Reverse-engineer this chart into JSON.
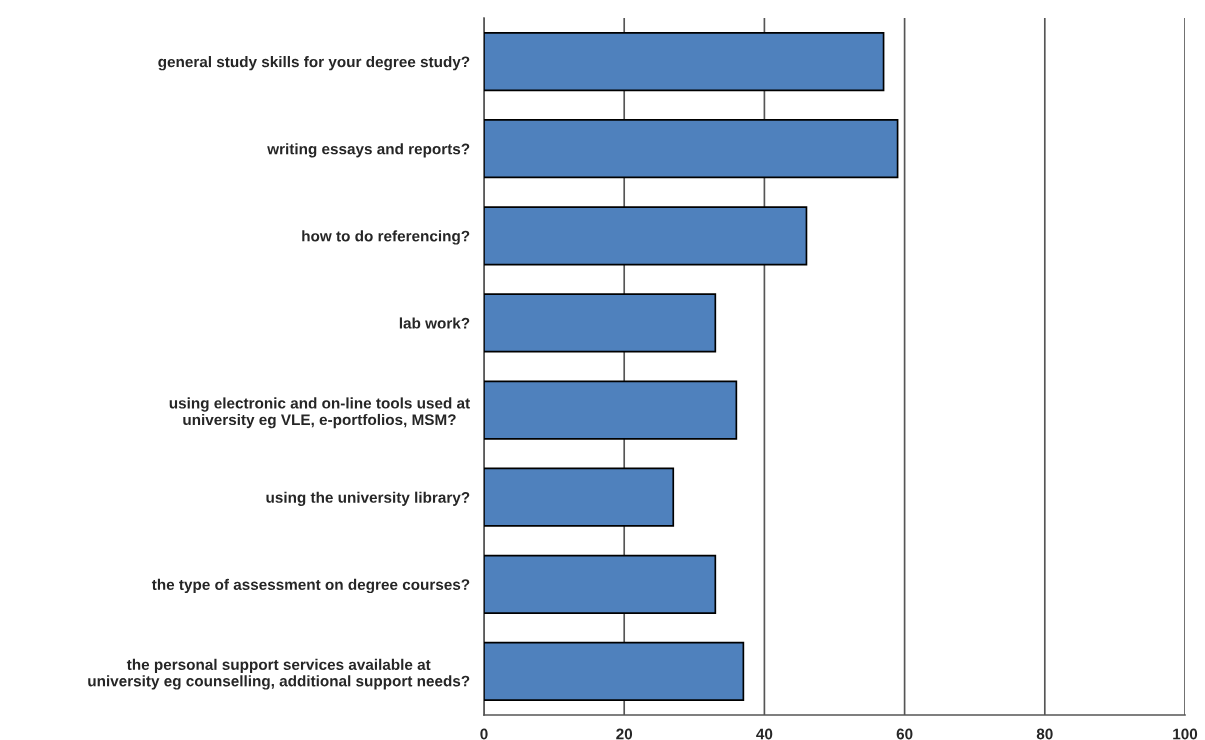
{
  "chart_data": {
    "type": "bar",
    "orientation": "horizontal",
    "categories": [
      "general study skills for your degree study?",
      "writing essays and reports?",
      "how to do referencing?",
      "lab work?",
      "using electronic and on-line tools used at\nuniversity eg VLE, e-portfolios, MSM?",
      "using the university library?",
      "the type of assessment on degree courses?",
      "the personal support services available at\nuniversity eg counselling, additional support needs?"
    ],
    "values": [
      57,
      59,
      46,
      33,
      36,
      27,
      33,
      37
    ],
    "color": "#4f81bd",
    "xlim": [
      0,
      100
    ],
    "xticks": [
      0,
      20,
      40,
      60,
      80,
      100
    ],
    "grid": "x"
  }
}
